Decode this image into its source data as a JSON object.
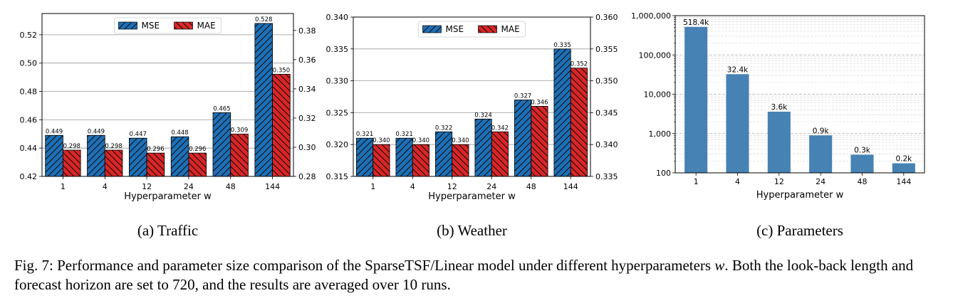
{
  "chart_data": [
    {
      "type": "bar",
      "subcaption": "(a) Traffic",
      "xlabel": "Hyperparameter w",
      "categories": [
        "1",
        "4",
        "12",
        "24",
        "48",
        "144"
      ],
      "series": [
        {
          "name": "MSE",
          "axis": "left",
          "color": "#1f6fb4",
          "hatch": "/",
          "values": [
            0.449,
            0.449,
            0.447,
            0.448,
            0.465,
            0.528
          ],
          "labels": [
            "0.449",
            "0.449",
            "0.447",
            "0.448",
            "0.465",
            "0.528"
          ]
        },
        {
          "name": "MAE",
          "axis": "right",
          "color": "#d62728",
          "hatch": "\\",
          "values": [
            0.298,
            0.298,
            0.296,
            0.296,
            0.309,
            0.35
          ],
          "labels": [
            "0.298",
            "0.298",
            "0.296",
            "0.296",
            "0.309",
            "0.350"
          ]
        }
      ],
      "ylim_left": [
        0.42,
        0.535
      ],
      "yticks_left": [
        "0.42",
        "0.44",
        "0.46",
        "0.48",
        "0.50",
        "0.52"
      ],
      "ylim_right": [
        0.28,
        0.3916
      ],
      "yticks_right": [
        "0.28",
        "0.30",
        "0.32",
        "0.34",
        "0.36",
        "0.38"
      ],
      "grid": "horizontal",
      "legend": "top-center"
    },
    {
      "type": "bar",
      "subcaption": "(b) Weather",
      "xlabel": "Hyperparameter w",
      "categories": [
        "1",
        "4",
        "12",
        "24",
        "48",
        "144"
      ],
      "series": [
        {
          "name": "MSE",
          "axis": "left",
          "color": "#1f6fb4",
          "hatch": "/",
          "values": [
            0.321,
            0.321,
            0.322,
            0.324,
            0.327,
            0.335
          ],
          "labels": [
            "0.321",
            "0.321",
            "0.322",
            "0.324",
            "0.327",
            "0.335"
          ]
        },
        {
          "name": "MAE",
          "axis": "right",
          "color": "#d62728",
          "hatch": "\\",
          "values": [
            0.34,
            0.34,
            0.34,
            0.342,
            0.346,
            0.352
          ],
          "labels": [
            "0.340",
            "0.340",
            "0.340",
            "0.342",
            "0.346",
            "0.352"
          ]
        }
      ],
      "ylim_left": [
        0.315,
        0.34
      ],
      "yticks_left": [
        "0.315",
        "0.320",
        "0.325",
        "0.330",
        "0.335",
        "0.340"
      ],
      "ylim_right": [
        0.335,
        0.36
      ],
      "yticks_right": [
        "0.335",
        "0.340",
        "0.345",
        "0.350",
        "0.355",
        "0.360"
      ],
      "grid": "horizontal",
      "legend": "top-center"
    },
    {
      "type": "bar",
      "subcaption": "(c) Parameters",
      "xlabel": "Hyperparameter w",
      "scale": "log",
      "categories": [
        "1",
        "4",
        "12",
        "24",
        "48",
        "144"
      ],
      "series": [
        {
          "name": "Parameters",
          "color": "#4682b4",
          "values": [
            518400,
            32400,
            3600,
            900,
            290,
            175
          ],
          "labels": [
            "518.4k",
            "32.4k",
            "3.6k",
            "0.9k",
            "0.3k",
            "0.2k"
          ]
        }
      ],
      "ylim": [
        100,
        1000000
      ],
      "yticks": [
        "100",
        "1,000",
        "10,000",
        "100,000",
        "1,000,000"
      ],
      "grid": "major and minor, dashed",
      "legend": "none"
    }
  ],
  "caption": "Fig. 7: Performance and parameter size comparison of the SparseTSF/Linear model under different hyperparameters w. Both the look-back length and forecast horizon are set to 720, and the results are averaged over 10 runs.",
  "caption_var": "w"
}
